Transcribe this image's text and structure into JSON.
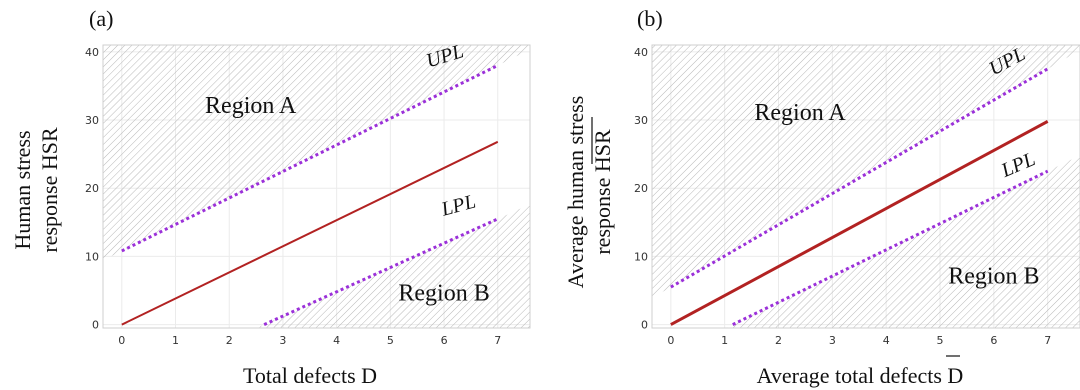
{
  "colors": {
    "center_line": "#b22222",
    "limit_lines": "#9b30d9",
    "hatch": "#b8b8b8",
    "grid": "#ebebeb",
    "frame": "#cfcfcf"
  },
  "chart_data": [
    {
      "type": "line",
      "panel_label": "(a)",
      "xlabel": "Total defects D",
      "ylabel_line1": "Human stress",
      "ylabel_line2": "response HSR",
      "xlim": [
        -0.35,
        7.6
      ],
      "ylim": [
        -0.5,
        41
      ],
      "x_ticks": [
        0,
        1,
        2,
        3,
        4,
        5,
        6,
        7
      ],
      "y_ticks": [
        0,
        10,
        20,
        30,
        40
      ],
      "grid": true,
      "series": [
        {
          "role": "center",
          "style": "solid",
          "x": [
            0,
            7
          ],
          "y": [
            0,
            26.8
          ]
        },
        {
          "role": "upper",
          "name": "UPL",
          "style": "dotted",
          "x": [
            0,
            7
          ],
          "y": [
            10.8,
            38
          ]
        },
        {
          "role": "lower",
          "name": "LPL",
          "style": "dotted",
          "x": [
            2.65,
            7
          ],
          "y": [
            0,
            15.5
          ]
        }
      ],
      "regions": [
        {
          "name": "Region A",
          "side": "above upper limit",
          "label_at": [
            2.4,
            31
          ]
        },
        {
          "name": "Region B",
          "side": "below lower limit",
          "label_at": [
            6,
            3.5
          ]
        }
      ],
      "limit_labels": [
        {
          "text": "UPL",
          "at": [
            6.05,
            38.5
          ],
          "rotate": -17
        },
        {
          "text": "LPL",
          "at": [
            6.3,
            16.6
          ],
          "rotate": -15
        }
      ]
    },
    {
      "type": "line",
      "panel_label": "(b)",
      "xlabel": "Average total defects D",
      "ylabel_line1": "Average human stress",
      "ylabel_line2": "response HSR",
      "xlim": [
        -0.35,
        7.6
      ],
      "ylim": [
        -0.5,
        41
      ],
      "x_ticks": [
        0,
        1,
        2,
        3,
        4,
        5,
        6,
        7
      ],
      "y_ticks": [
        0,
        10,
        20,
        30,
        40
      ],
      "grid": true,
      "series": [
        {
          "role": "center",
          "style": "solid",
          "x": [
            0,
            7
          ],
          "y": [
            0,
            29.8
          ]
        },
        {
          "role": "upper",
          "name": "UPL",
          "style": "dotted",
          "x": [
            0,
            7
          ],
          "y": [
            5.5,
            37.5
          ]
        },
        {
          "role": "lower",
          "name": "LPL",
          "style": "dotted",
          "x": [
            1.15,
            7
          ],
          "y": [
            0,
            22.5
          ]
        }
      ],
      "regions": [
        {
          "name": "Region A",
          "side": "above upper limit",
          "label_at": [
            2.4,
            30
          ]
        },
        {
          "name": "Region B",
          "side": "below lower limit",
          "label_at": [
            6,
            6
          ]
        }
      ],
      "limit_labels": [
        {
          "text": "UPL",
          "at": [
            6.3,
            37.8
          ],
          "rotate": -28
        },
        {
          "text": "LPL",
          "at": [
            6.5,
            22.6
          ],
          "rotate": -23
        }
      ]
    }
  ]
}
